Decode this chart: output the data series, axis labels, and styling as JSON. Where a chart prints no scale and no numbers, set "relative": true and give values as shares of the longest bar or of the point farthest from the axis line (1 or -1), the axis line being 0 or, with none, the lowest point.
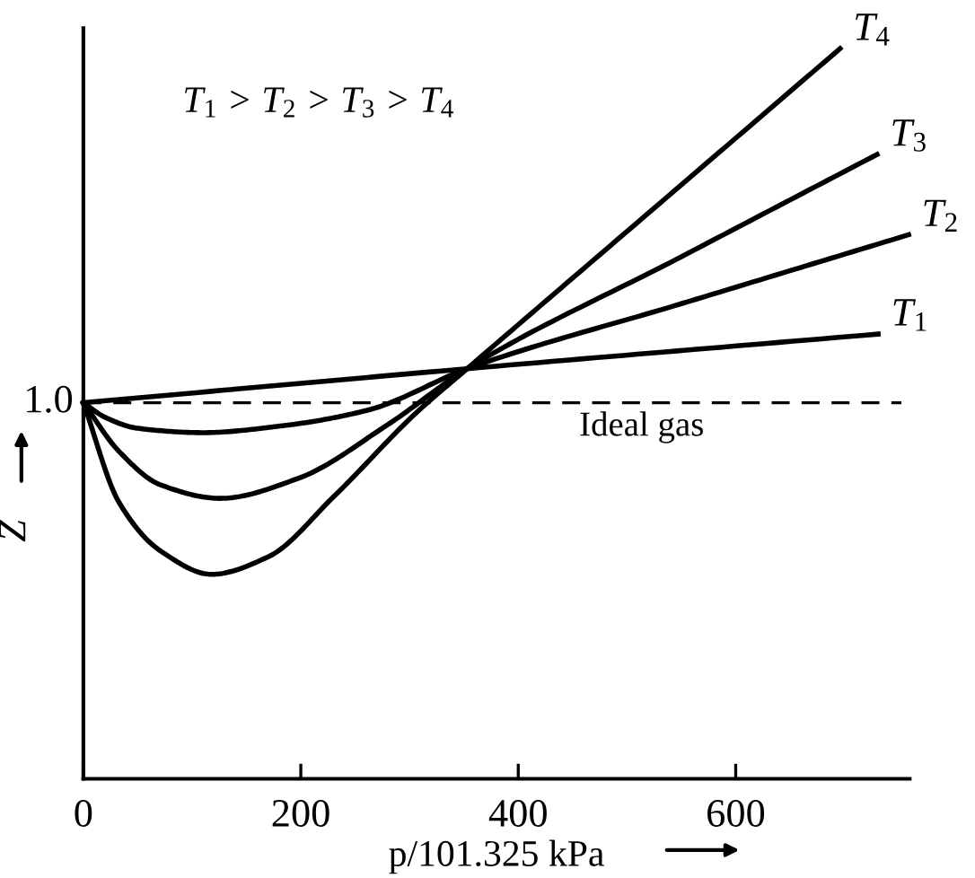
{
  "chart_data": {
    "type": "line",
    "relative": true,
    "xlabel": "p/101.325 kPa",
    "ylabel": "Z",
    "xlim": [
      0,
      760
    ],
    "xticks": [
      0,
      200,
      400,
      600
    ],
    "grid": false,
    "legend": false,
    "marker": "none",
    "line_style": "solid",
    "series": [
      {
        "name": "T$_{1}$",
        "color": "#000000",
        "x": [
          0,
          353,
          731
        ],
        "values": [
          0.515,
          0.5616,
          0.609
        ]
      },
      {
        "name": "T$_{2}$",
        "color": "#000000",
        "x": [
          0,
          20,
          50,
          110,
          186,
          262,
          353,
          550,
          759
        ],
        "values": [
          0.515,
          0.495,
          0.48,
          0.474,
          0.484,
          0.505,
          0.5616,
          0.6506,
          0.745
        ]
      },
      {
        "name": "T$_{3}$",
        "color": "#000000",
        "x": [
          0,
          33,
          71,
          126,
          197,
          279,
          353,
          550,
          730
        ],
        "values": [
          0.515,
          0.448,
          0.4025,
          0.384,
          0.411,
          0.484,
          0.5616,
          0.7149,
          0.855
        ]
      },
      {
        "name": "T$_{4}$",
        "color": "#000000",
        "x": [
          0,
          33,
          71,
          118,
          170,
          230,
          306,
          353,
          550,
          696
        ],
        "values": [
          0.515,
          0.378,
          0.312,
          0.28,
          0.304,
          0.386,
          0.501,
          0.5616,
          0.8134,
          1.0
        ]
      }
    ],
    "ref_lines": [
      {
        "axis": "y",
        "value": 0.515,
        "label": "Ideal gas",
        "line_style": "dashed",
        "color": "#000000"
      }
    ],
    "annotations": [
      "T$_{1}$ > T$_{2}$ > T$_{3}$ > T$_{4}$",
      "1.0"
    ]
  }
}
